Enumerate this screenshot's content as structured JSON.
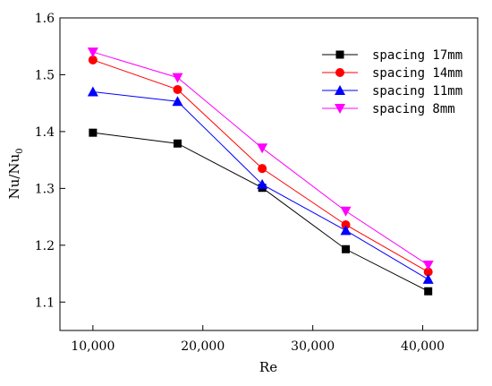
{
  "chart_data": {
    "type": "line",
    "xlabel": "Re",
    "ylabel_main": "Nu/Nu",
    "ylabel_sub": "0",
    "xlim": [
      7000,
      45000
    ],
    "ylim": [
      1.05,
      1.6
    ],
    "xticks": [
      10000,
      20000,
      30000,
      40000
    ],
    "xtick_labels": [
      "10,000",
      "20,000",
      "30,000",
      "40,000"
    ],
    "yticks": [
      1.1,
      1.2,
      1.3,
      1.4,
      1.5,
      1.6
    ],
    "ytick_labels": [
      "1.1",
      "1.2",
      "1.3",
      "1.4",
      "1.5",
      "1.6"
    ],
    "grid": false,
    "legend_position": "top-right",
    "x": [
      10000,
      17700,
      25400,
      33000,
      40500
    ],
    "series": [
      {
        "name": "spacing 17mm",
        "color": "#000000",
        "marker": "square",
        "values": [
          1.398,
          1.379,
          1.301,
          1.193,
          1.119
        ]
      },
      {
        "name": "spacing 14mm",
        "color": "#ff0000",
        "marker": "circle",
        "values": [
          1.526,
          1.474,
          1.335,
          1.236,
          1.153
        ]
      },
      {
        "name": "spacing 11mm",
        "color": "#0000ff",
        "marker": "triangle-up",
        "values": [
          1.47,
          1.453,
          1.307,
          1.226,
          1.14
        ]
      },
      {
        "name": "spacing 8mm",
        "color": "#ff00ff",
        "marker": "triangle-down",
        "values": [
          1.54,
          1.495,
          1.371,
          1.26,
          1.165
        ]
      }
    ]
  }
}
